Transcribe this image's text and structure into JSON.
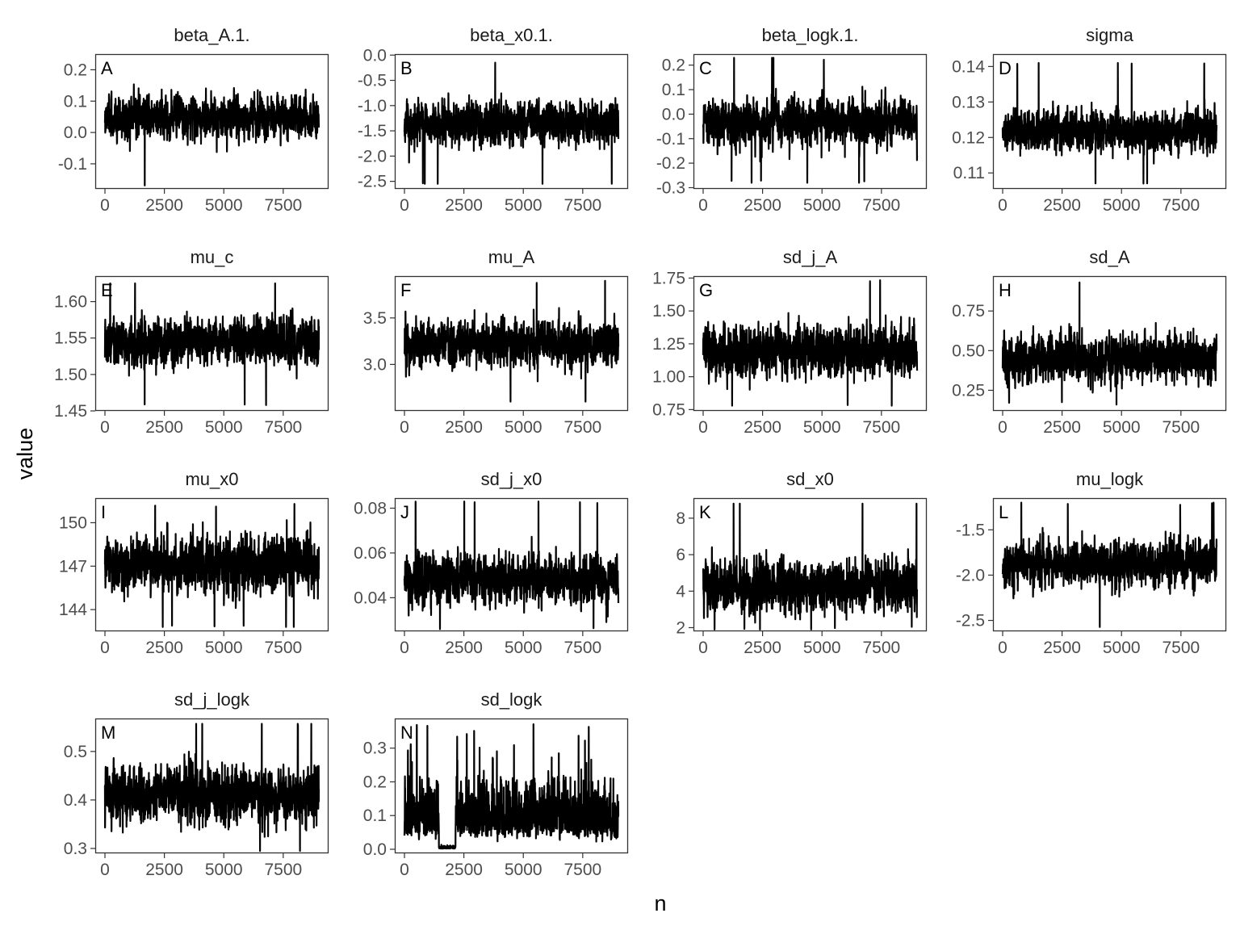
{
  "figure": {
    "xlabel": "n",
    "ylabel": "value"
  },
  "colors": {
    "trace": "#000000",
    "warmup_trace": "#8c8c8c",
    "panel_border": "#333333",
    "tick_text": "#4d4d4d"
  },
  "chart_data": [
    {
      "type": "line",
      "tag": "A",
      "title": "beta_A.1.",
      "x": [
        0,
        9000
      ],
      "xticks": [
        0,
        2500,
        5000,
        7500
      ],
      "xtick_labels": [
        "0",
        "2500",
        "5000",
        "7500"
      ],
      "ylim": [
        -0.18,
        0.25
      ],
      "yticks": [
        -0.1,
        0.0,
        0.1,
        0.2
      ],
      "ytick_labels": [
        "-0.1",
        "0.0",
        "0.1",
        "0.2"
      ],
      "center": 0.05,
      "spread": 0.045,
      "min": -0.17,
      "max": 0.24
    },
    {
      "type": "line",
      "tag": "B",
      "title": "beta_x0.1.",
      "x": [
        0,
        9000
      ],
      "xticks": [
        0,
        2500,
        5000,
        7500
      ],
      "xtick_labels": [
        "0",
        "2500",
        "5000",
        "7500"
      ],
      "ylim": [
        -2.65,
        0.02
      ],
      "yticks": [
        -2.5,
        -2.0,
        -1.5,
        -1.0,
        -0.5,
        0.0
      ],
      "ytick_labels": [
        "-2.5",
        "-2.0",
        "-1.5",
        "-1.0",
        "-0.5",
        "0.0"
      ],
      "center": -1.35,
      "spread": 0.28,
      "min": -2.55,
      "max": -0.15
    },
    {
      "type": "line",
      "tag": "C",
      "title": "beta_logk.1.",
      "x": [
        0,
        9000
      ],
      "xticks": [
        0,
        2500,
        5000,
        7500
      ],
      "xtick_labels": [
        "0",
        "2500",
        "5000",
        "7500"
      ],
      "ylim": [
        -0.305,
        0.245
      ],
      "yticks": [
        -0.3,
        -0.2,
        -0.1,
        0.0,
        0.1,
        0.2
      ],
      "ytick_labels": [
        "-0.3",
        "-0.2",
        "-0.1",
        "0.0",
        "0.1",
        "0.2"
      ],
      "center": -0.03,
      "spread": 0.065,
      "min": -0.28,
      "max": 0.23
    },
    {
      "type": "line",
      "tag": "D",
      "title": "sigma",
      "x": [
        0,
        9000
      ],
      "xticks": [
        0,
        2500,
        5000,
        7500
      ],
      "xtick_labels": [
        "0",
        "2500",
        "5000",
        "7500"
      ],
      "ylim": [
        0.1055,
        0.1435
      ],
      "yticks": [
        0.11,
        0.12,
        0.13,
        0.14
      ],
      "ytick_labels": [
        "0.11",
        "0.12",
        "0.13",
        "0.14"
      ],
      "center": 0.122,
      "spread": 0.0038,
      "min": 0.107,
      "max": 0.141
    },
    {
      "type": "line",
      "tag": "E",
      "title": "mu_c",
      "x": [
        0,
        9000
      ],
      "xticks": [
        0,
        2500,
        5000,
        7500
      ],
      "xtick_labels": [
        "0",
        "2500",
        "5000",
        "7500"
      ],
      "ylim": [
        1.45,
        1.635
      ],
      "yticks": [
        1.45,
        1.5,
        1.55,
        1.6
      ],
      "ytick_labels": [
        "1.45",
        "1.50",
        "1.55",
        "1.60"
      ],
      "center": 1.545,
      "spread": 0.021,
      "min": 1.458,
      "max": 1.625
    },
    {
      "type": "line",
      "tag": "F",
      "title": "mu_A",
      "x": [
        0,
        9000
      ],
      "xticks": [
        0,
        2500,
        5000,
        7500
      ],
      "xtick_labels": [
        "0",
        "2500",
        "5000",
        "7500"
      ],
      "ylim": [
        2.5,
        3.95
      ],
      "yticks": [
        3.0,
        3.5
      ],
      "ytick_labels": [
        "3.0",
        "3.5"
      ],
      "center": 3.22,
      "spread": 0.17,
      "min": 2.6,
      "max": 3.9
    },
    {
      "type": "line",
      "tag": "G",
      "title": "sd_j_A",
      "x": [
        0,
        9000
      ],
      "xticks": [
        0,
        2500,
        5000,
        7500
      ],
      "xtick_labels": [
        "0",
        "2500",
        "5000",
        "7500"
      ],
      "ylim": [
        0.74,
        1.765
      ],
      "yticks": [
        0.75,
        1.0,
        1.25,
        1.5,
        1.75
      ],
      "ytick_labels": [
        "0.75",
        "1.00",
        "1.25",
        "1.50",
        "1.75"
      ],
      "center": 1.2,
      "spread": 0.13,
      "min": 0.78,
      "max": 1.74
    },
    {
      "type": "line",
      "tag": "H",
      "title": "sd_A",
      "x": [
        0,
        9000
      ],
      "xticks": [
        0,
        2500,
        5000,
        7500
      ],
      "xtick_labels": [
        "0",
        "2500",
        "5000",
        "7500"
      ],
      "ylim": [
        0.12,
        0.97
      ],
      "yticks": [
        0.25,
        0.5,
        0.75
      ],
      "ytick_labels": [
        "0.25",
        "0.50",
        "0.75"
      ],
      "center": 0.45,
      "spread": 0.1,
      "min": 0.16,
      "max": 0.93
    },
    {
      "type": "line",
      "tag": "I",
      "title": "mu_x0",
      "x": [
        0,
        9000
      ],
      "xticks": [
        0,
        2500,
        5000,
        7500
      ],
      "xtick_labels": [
        "0",
        "2500",
        "5000",
        "7500"
      ],
      "ylim": [
        142.5,
        151.7
      ],
      "yticks": [
        144,
        147,
        150
      ],
      "ytick_labels": [
        "144",
        "147",
        "150"
      ],
      "center": 147.2,
      "spread": 1.3,
      "min": 142.8,
      "max": 151.3
    },
    {
      "type": "line",
      "tag": "J",
      "title": "sd_j_x0",
      "x": [
        0,
        9000
      ],
      "xticks": [
        0,
        2500,
        5000,
        7500
      ],
      "xtick_labels": [
        "0",
        "2500",
        "5000",
        "7500"
      ],
      "ylim": [
        0.025,
        0.0845
      ],
      "yticks": [
        0.04,
        0.06,
        0.08
      ],
      "ytick_labels": [
        "0.04",
        "0.06",
        "0.08"
      ],
      "center": 0.048,
      "spread": 0.0072,
      "min": 0.026,
      "max": 0.083
    },
    {
      "type": "line",
      "tag": "K",
      "title": "sd_x0",
      "x": [
        0,
        9000
      ],
      "xticks": [
        0,
        2500,
        5000,
        7500
      ],
      "xtick_labels": [
        "0",
        "2500",
        "5000",
        "7500"
      ],
      "ylim": [
        1.8,
        9.1
      ],
      "yticks": [
        2,
        4,
        6,
        8
      ],
      "ytick_labels": [
        "2",
        "4",
        "6",
        "8"
      ],
      "center": 4.3,
      "spread": 0.95,
      "min": 1.9,
      "max": 8.8
    },
    {
      "type": "line",
      "tag": "L",
      "title": "mu_logk",
      "x": [
        0,
        9000
      ],
      "xticks": [
        0,
        2500,
        5000,
        7500
      ],
      "xtick_labels": [
        "0",
        "2500",
        "5000",
        "7500"
      ],
      "ylim": [
        -2.62,
        -1.15
      ],
      "yticks": [
        -2.5,
        -2.0,
        -1.5
      ],
      "ytick_labels": [
        "-2.5",
        "-2.0",
        "-1.5"
      ],
      "center": -1.88,
      "spread": 0.17,
      "min": -2.58,
      "max": -1.2
    },
    {
      "type": "line",
      "tag": "M",
      "title": "sd_j_logk",
      "x": [
        0,
        9000
      ],
      "xticks": [
        0,
        2500,
        5000,
        7500
      ],
      "xtick_labels": [
        "0",
        "2500",
        "5000",
        "7500"
      ],
      "ylim": [
        0.29,
        0.568
      ],
      "yticks": [
        0.3,
        0.4,
        0.5
      ],
      "ytick_labels": [
        "0.3",
        "0.4",
        "0.5"
      ],
      "center": 0.41,
      "spread": 0.038,
      "min": 0.295,
      "max": 0.557
    },
    {
      "type": "line",
      "tag": "N",
      "title": "sd_logk",
      "x": [
        0,
        9000
      ],
      "xticks": [
        0,
        2500,
        5000,
        7500
      ],
      "xtick_labels": [
        "0",
        "2500",
        "5000",
        "7500"
      ],
      "ylim": [
        -0.012,
        0.388
      ],
      "yticks": [
        0.0,
        0.1,
        0.2,
        0.3
      ],
      "ytick_labels": [
        "0.0",
        "0.1",
        "0.2",
        "0.3"
      ],
      "center": 0.1,
      "spread": 0.06,
      "min": 0.0,
      "max": 0.375
    }
  ]
}
